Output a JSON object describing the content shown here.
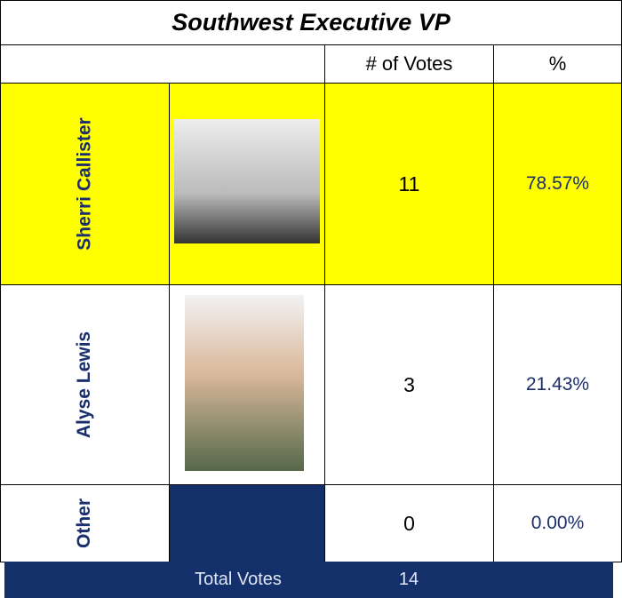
{
  "header": {
    "title": "Southwest Executive VP",
    "votes_heading": "# of Votes",
    "percent_heading": "%"
  },
  "table": {
    "rows": [
      {
        "name": "Sherri Callister",
        "votes": "11",
        "percent": "78.57%"
      },
      {
        "name": "Alyse Lewis",
        "votes": "3",
        "percent": "21.43%"
      },
      {
        "name": "Other",
        "votes": "0",
        "percent": "0.00%"
      }
    ]
  },
  "footer": {
    "label": "Total Votes",
    "value": "14"
  }
}
